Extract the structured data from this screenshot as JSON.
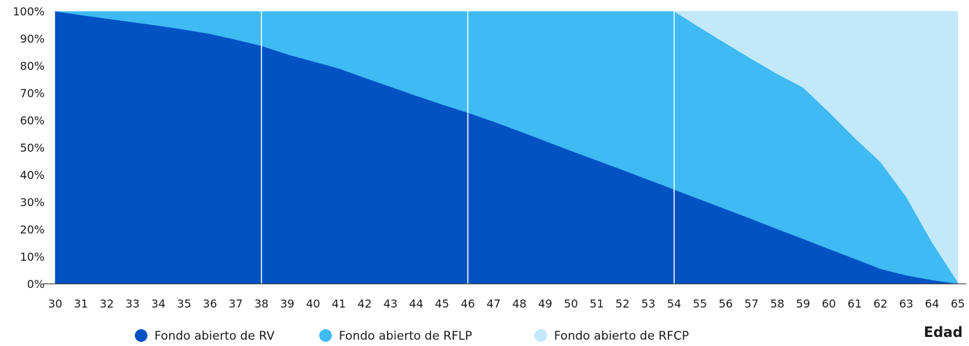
{
  "chart_data": {
    "type": "area",
    "stacked": true,
    "x": [
      30,
      31,
      32,
      33,
      34,
      35,
      36,
      37,
      38,
      39,
      40,
      41,
      42,
      43,
      44,
      45,
      46,
      47,
      48,
      49,
      50,
      51,
      52,
      53,
      54,
      55,
      56,
      57,
      58,
      59,
      60,
      61,
      62,
      63,
      64,
      65
    ],
    "xlabel": "Edad",
    "ylabel": "",
    "ylim": [
      0,
      100
    ],
    "y_ticks": [
      "0%",
      "10%",
      "20%",
      "30%",
      "40%",
      "50%",
      "60%",
      "70%",
      "80%",
      "90%",
      "100%"
    ],
    "vertical_markers": [
      38,
      46,
      54
    ],
    "legend_position": "bottom",
    "series": [
      {
        "name": "Fondo abierto de RV",
        "color": "#0352C4",
        "values": [
          100,
          98.6,
          97.3,
          96,
          94.7,
          93.3,
          91.7,
          89.6,
          87.3,
          84.2,
          81.6,
          79,
          75.6,
          72.3,
          69,
          65.8,
          62.8,
          59.5,
          56,
          52.4,
          48.8,
          45.3,
          41.8,
          38.2,
          34.6,
          31,
          27.4,
          23.8,
          20.1,
          16.5,
          12.8,
          9.2,
          5.5,
          3.1,
          1.4,
          0
        ]
      },
      {
        "name": "Fondo abierto de RFLP",
        "color": "#3FBAF3",
        "values": [
          0,
          1.4,
          2.7,
          4,
          5.3,
          6.7,
          8.3,
          10.4,
          12.7,
          15.8,
          18.4,
          21,
          24.4,
          27.7,
          31,
          34.2,
          37.2,
          40.5,
          44,
          47.6,
          51.2,
          54.7,
          58.2,
          61.8,
          65.4,
          63,
          60.8,
          58.7,
          56.9,
          55.5,
          50.2,
          44.3,
          39.2,
          28.8,
          13.8,
          0.6
        ]
      },
      {
        "name": "Fondo abierto de RFCP",
        "color": "#C2E8FA",
        "values": [
          0,
          0,
          0,
          0,
          0,
          0,
          0,
          0,
          0,
          0,
          0,
          0,
          0,
          0,
          0,
          0,
          0,
          0,
          0,
          0,
          0,
          0,
          0,
          0,
          0,
          6,
          11.8,
          17.5,
          23,
          28,
          37,
          46.5,
          55.3,
          68.1,
          84.8,
          99.4
        ]
      }
    ]
  }
}
